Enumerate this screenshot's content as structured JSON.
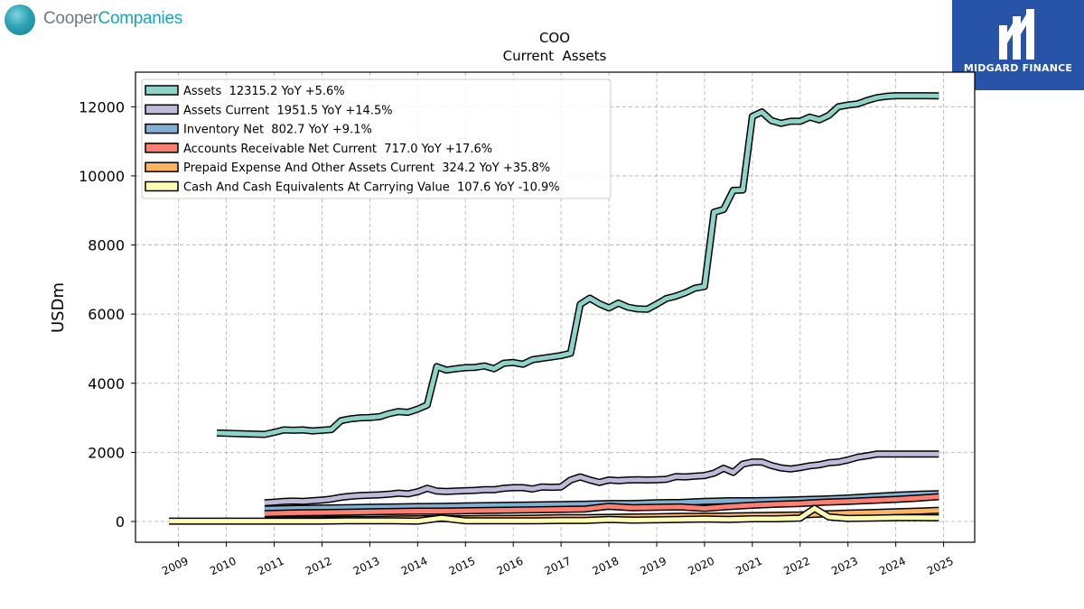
{
  "branding": {
    "left_logo": {
      "part1": "Cooper",
      "part2": "Companies"
    },
    "right_logo": {
      "text": "MIDGARD FINANCE"
    }
  },
  "chart_data": {
    "type": "line",
    "title": "COO",
    "subtitle": "Current  Assets",
    "ylabel": "USDm",
    "xlabel": "",
    "ylim": [
      -600,
      13000
    ],
    "xlim": [
      2008.1,
      2025.65
    ],
    "yticks": [
      0,
      2000,
      4000,
      6000,
      8000,
      10000,
      12000
    ],
    "xticks": [
      2009,
      2010,
      2011,
      2012,
      2013,
      2014,
      2015,
      2016,
      2017,
      2018,
      2019,
      2020,
      2021,
      2022,
      2023,
      2024,
      2025
    ],
    "grid": true,
    "legend_position": "top-left",
    "series": [
      {
        "name": "Assets",
        "legend": "Assets  12315.2 YoY +5.6%",
        "color": "#8dd3c7",
        "x": [
          2009.8,
          2010.8,
          2011.0,
          2011.2,
          2011.4,
          2011.6,
          2011.8,
          2012.0,
          2012.2,
          2012.4,
          2012.6,
          2012.8,
          2013.0,
          2013.2,
          2013.4,
          2013.6,
          2013.8,
          2014.0,
          2014.2,
          2014.4,
          2014.6,
          2014.8,
          2015.0,
          2015.2,
          2015.4,
          2015.6,
          2015.8,
          2016.0,
          2016.2,
          2016.4,
          2016.6,
          2016.8,
          2017.0,
          2017.2,
          2017.4,
          2017.6,
          2017.8,
          2018.0,
          2018.2,
          2018.4,
          2018.6,
          2018.8,
          2019.0,
          2019.2,
          2019.4,
          2019.6,
          2019.8,
          2020.0,
          2020.2,
          2020.4,
          2020.6,
          2020.8,
          2021.0,
          2021.2,
          2021.4,
          2021.6,
          2021.8,
          2022.0,
          2022.2,
          2022.4,
          2022.6,
          2022.8,
          2023.0,
          2023.2,
          2023.4,
          2023.6,
          2023.8,
          2024.0,
          2024.2,
          2024.4,
          2024.6,
          2024.9
        ],
        "values": [
          2560,
          2520,
          2580,
          2650,
          2640,
          2650,
          2620,
          2640,
          2660,
          2920,
          2970,
          3000,
          3010,
          3030,
          3120,
          3180,
          3160,
          3250,
          3370,
          4480,
          4380,
          4420,
          4450,
          4460,
          4500,
          4420,
          4580,
          4600,
          4550,
          4680,
          4720,
          4760,
          4800,
          4870,
          6280,
          6460,
          6300,
          6180,
          6320,
          6200,
          6150,
          6140,
          6290,
          6450,
          6520,
          6620,
          6750,
          6800,
          8950,
          9030,
          9580,
          9590,
          11720,
          11850,
          11600,
          11520,
          11580,
          11580,
          11700,
          11620,
          11750,
          12000,
          12050,
          12080,
          12180,
          12260,
          12300,
          12320,
          12320,
          12320,
          12320,
          12315
        ]
      },
      {
        "name": "Assets Current",
        "legend": "Assets Current  1951.5 YoY +14.5%",
        "color": "#bebada",
        "x": [
          2010.8,
          2011.0,
          2011.2,
          2011.4,
          2011.6,
          2011.8,
          2012.0,
          2012.2,
          2012.4,
          2012.6,
          2012.8,
          2013.0,
          2013.2,
          2013.4,
          2013.6,
          2013.8,
          2014.0,
          2014.2,
          2014.4,
          2014.6,
          2014.8,
          2015.0,
          2015.2,
          2015.4,
          2015.6,
          2015.8,
          2016.0,
          2016.2,
          2016.4,
          2016.6,
          2016.8,
          2017.0,
          2017.2,
          2017.4,
          2017.6,
          2017.8,
          2018.0,
          2018.2,
          2018.4,
          2018.6,
          2018.8,
          2019.0,
          2019.2,
          2019.4,
          2019.6,
          2019.8,
          2020.0,
          2020.2,
          2020.4,
          2020.6,
          2020.8,
          2021.0,
          2021.2,
          2021.4,
          2021.6,
          2021.8,
          2022.0,
          2022.2,
          2022.4,
          2022.6,
          2022.8,
          2023.0,
          2023.2,
          2023.4,
          2023.6,
          2023.8,
          2024.0,
          2024.2,
          2024.4,
          2024.6,
          2024.9
        ],
        "values": [
          540,
          560,
          580,
          590,
          580,
          600,
          620,
          650,
          700,
          730,
          750,
          760,
          770,
          790,
          820,
          800,
          860,
          960,
          880,
          870,
          880,
          890,
          900,
          920,
          920,
          960,
          980,
          980,
          940,
          1000,
          990,
          1000,
          1200,
          1290,
          1200,
          1130,
          1200,
          1180,
          1200,
          1210,
          1200,
          1210,
          1220,
          1300,
          1290,
          1310,
          1330,
          1400,
          1540,
          1420,
          1660,
          1720,
          1720,
          1620,
          1550,
          1520,
          1560,
          1610,
          1640,
          1700,
          1720,
          1780,
          1860,
          1900,
          1951,
          1951,
          1951,
          1951,
          1951,
          1951,
          1951
        ]
      },
      {
        "name": "Inventory Net",
        "legend": "Inventory Net  802.7 YoY +9.1%",
        "color": "#80b1d3",
        "x": [
          2010.8,
          2011.5,
          2012.0,
          2012.5,
          2013.0,
          2013.5,
          2014.0,
          2014.5,
          2015.0,
          2015.5,
          2016.0,
          2016.5,
          2017.0,
          2017.5,
          2018.0,
          2018.5,
          2019.0,
          2019.5,
          2020.0,
          2020.5,
          2021.0,
          2021.5,
          2022.0,
          2022.5,
          2023.0,
          2023.5,
          2024.0,
          2024.5,
          2024.9
        ],
        "values": [
          360,
          380,
          390,
          400,
          410,
          420,
          430,
          440,
          450,
          460,
          470,
          480,
          490,
          500,
          520,
          520,
          540,
          550,
          580,
          600,
          600,
          610,
          630,
          650,
          680,
          720,
          760,
          790,
          802.7
        ]
      },
      {
        "name": "Accounts Receivable Net Current",
        "legend": "Accounts Receivable Net Current  717.0 YoY +17.6%",
        "color": "#fb8072",
        "x": [
          2010.8,
          2011.5,
          2012.0,
          2012.5,
          2013.0,
          2013.5,
          2014.0,
          2014.5,
          2015.0,
          2015.5,
          2016.0,
          2016.5,
          2017.0,
          2017.5,
          2018.0,
          2018.5,
          2019.0,
          2019.5,
          2020.0,
          2020.5,
          2021.0,
          2021.5,
          2022.0,
          2022.5,
          2023.0,
          2023.5,
          2024.0,
          2024.5,
          2024.9
        ],
        "values": [
          230,
          250,
          260,
          270,
          280,
          290,
          300,
          300,
          310,
          320,
          330,
          340,
          350,
          360,
          440,
          400,
          410,
          420,
          380,
          430,
          470,
          500,
          520,
          560,
          580,
          610,
          640,
          680,
          717
        ]
      },
      {
        "name": "Prepaid Expense And Other Assets Current",
        "legend": "Prepaid Expense And Other Assets Current  324.2 YoY +35.8%",
        "color": "#fdb462",
        "x": [
          2010.8,
          2011.5,
          2012.0,
          2012.5,
          2013.0,
          2013.5,
          2014.0,
          2014.5,
          2015.0,
          2015.5,
          2016.0,
          2016.5,
          2017.0,
          2017.5,
          2018.0,
          2018.5,
          2019.0,
          2019.5,
          2020.0,
          2020.5,
          2021.0,
          2021.5,
          2022.0,
          2022.5,
          2023.0,
          2023.5,
          2024.0,
          2024.5,
          2024.9
        ],
        "values": [
          40,
          50,
          50,
          60,
          60,
          70,
          80,
          90,
          80,
          90,
          90,
          100,
          110,
          110,
          120,
          130,
          140,
          150,
          150,
          160,
          170,
          180,
          190,
          220,
          240,
          260,
          280,
          300,
          324.2
        ]
      },
      {
        "name": "Cash And Cash Equivalents At Carrying Value",
        "legend": "Cash And Cash Equivalents At Carrying Value  107.6 YoY -10.9%",
        "color": "#ffffb3",
        "x": [
          2008.8,
          2009.5,
          2010.0,
          2010.5,
          2011.0,
          2011.5,
          2012.0,
          2012.5,
          2013.0,
          2013.5,
          2014.0,
          2014.5,
          2015.0,
          2015.5,
          2016.0,
          2016.5,
          2017.0,
          2017.5,
          2018.0,
          2018.5,
          2019.0,
          2019.5,
          2020.0,
          2020.5,
          2021.0,
          2021.5,
          2022.0,
          2022.3,
          2022.6,
          2023.0,
          2023.5,
          2024.0,
          2024.5,
          2024.9
        ],
        "values": [
          10,
          10,
          10,
          10,
          10,
          10,
          10,
          20,
          20,
          20,
          10,
          100,
          20,
          20,
          20,
          20,
          30,
          30,
          60,
          40,
          50,
          60,
          70,
          60,
          80,
          80,
          100,
          380,
          130,
          90,
          100,
          110,
          110,
          107.6
        ]
      }
    ]
  }
}
